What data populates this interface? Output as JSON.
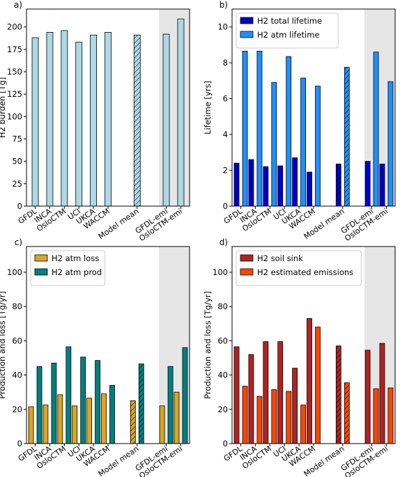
{
  "chart_data": [
    {
      "panel": "a)",
      "type": "bar",
      "ylabel": "H2 burden [Tg]",
      "ylim": [
        0,
        220
      ],
      "yticks": [
        0,
        25,
        50,
        75,
        100,
        125,
        150,
        175,
        200
      ],
      "categories": [
        "GFDL",
        "INCA",
        "OsloCTM",
        "UCI",
        "UKCA",
        "WACCM",
        "Model mean",
        "GFDL-emi",
        "OsloCTM-emi"
      ],
      "series": [
        {
          "values": [
            188,
            194,
            196,
            183,
            191,
            194,
            191,
            192,
            209
          ],
          "color": "#add8e6"
        }
      ],
      "hatched_category": "Model mean",
      "shaded_categories": [
        "GFDL-emi",
        "OsloCTM-emi"
      ],
      "legend": null
    },
    {
      "panel": "b)",
      "type": "bar",
      "ylabel": "Lifetime [yrs]",
      "ylim": [
        0,
        11
      ],
      "yticks": [
        0,
        2,
        4,
        6,
        8,
        10
      ],
      "categories": [
        "GFDL",
        "INCA",
        "OsloCTM",
        "UCI",
        "UKCA",
        "WACCM",
        "Model mean",
        "GFDL-emi",
        "OsloCTM-emi"
      ],
      "series": [
        {
          "name": "H2 total lifetime",
          "values": [
            2.4,
            2.6,
            2.2,
            2.25,
            2.7,
            1.9,
            2.35,
            2.5,
            2.35
          ],
          "color": "#0000cd"
        },
        {
          "name": "H2 atm lifetime",
          "values": [
            8.65,
            8.65,
            6.9,
            8.35,
            7.15,
            6.7,
            7.75,
            8.6,
            6.95
          ],
          "color": "#1e90ff"
        }
      ],
      "hatched_category": "Model mean",
      "shaded_categories": [
        "GFDL-emi",
        "OsloCTM-emi"
      ],
      "legend": "top-left"
    },
    {
      "panel": "c)",
      "type": "bar",
      "ylabel": "Production and loss [Tg/yr]",
      "ylim": [
        0,
        115
      ],
      "yticks": [
        0,
        20,
        40,
        60,
        80,
        100
      ],
      "categories": [
        "GFDL",
        "INCA",
        "OsloCTM",
        "UCI",
        "UKCA",
        "WACCM",
        "Model mean",
        "GFDL-emi",
        "OsloCTM-emi"
      ],
      "series": [
        {
          "name": "H2 atm loss",
          "values": [
            21.5,
            22.5,
            28.5,
            22,
            26.5,
            29,
            25,
            22,
            30
          ],
          "color": "#daa520"
        },
        {
          "name": "H2 atm prod",
          "values": [
            45,
            47,
            56.5,
            50.5,
            48.5,
            34,
            46.5,
            45,
            56
          ],
          "color": "#008080"
        }
      ],
      "hatched_category": "Model mean",
      "shaded_categories": [
        "GFDL-emi",
        "OsloCTM-emi"
      ],
      "legend": "top-left"
    },
    {
      "panel": "d)",
      "type": "bar",
      "ylabel": "Production and loss [Tg/yr]",
      "ylim": [
        0,
        115
      ],
      "yticks": [
        0,
        20,
        40,
        60,
        80,
        100
      ],
      "categories": [
        "GFDL",
        "INCA",
        "OsloCTM",
        "UCI",
        "UKCA",
        "WACCM",
        "Model mean",
        "GFDL-emi",
        "OsloCTM-emi"
      ],
      "series": [
        {
          "name": "H2 soil sink",
          "values": [
            56.5,
            52,
            59.5,
            59.5,
            44,
            73,
            57,
            54.5,
            58.5
          ],
          "color": "#b22222"
        },
        {
          "name": "H2 estimated emissions",
          "values": [
            33.5,
            27.5,
            31.5,
            30.5,
            22.5,
            68,
            35.5,
            32,
            32.5
          ],
          "color": "#ff4500"
        }
      ],
      "hatched_category": "Model mean",
      "shaded_categories": [
        "GFDL-emi",
        "OsloCTM-emi"
      ],
      "legend": "top-left"
    }
  ]
}
